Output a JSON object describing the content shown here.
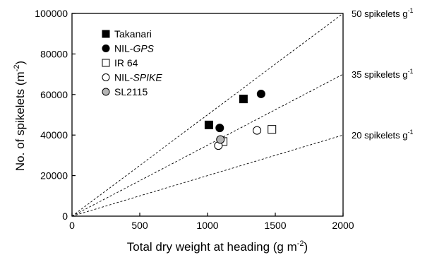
{
  "chart_data": {
    "type": "scatter",
    "title": "",
    "xlabel": "Total dry weight at heading (g m-2)",
    "ylabel": "No. of spikelets (m-2)",
    "xlim": [
      0,
      2000
    ],
    "ylim": [
      0,
      100000
    ],
    "xticks": [
      "0",
      "500",
      "1000",
      "1500",
      "2000"
    ],
    "yticks": [
      "0",
      "20000",
      "40000",
      "60000",
      "80000",
      "100000"
    ],
    "grid": false,
    "legend_position": "top-left",
    "series": [
      {
        "name": "Takanari",
        "marker": "filled-square",
        "points": [
          {
            "x": 1010,
            "y": 45000
          },
          {
            "x": 1265,
            "y": 57800
          }
        ]
      },
      {
        "name": "NIL-GPS",
        "marker": "filled-circle",
        "points": [
          {
            "x": 1090,
            "y": 43500
          },
          {
            "x": 1395,
            "y": 60300
          }
        ]
      },
      {
        "name": "IR 64",
        "marker": "open-square",
        "points": [
          {
            "x": 1115,
            "y": 36800
          },
          {
            "x": 1475,
            "y": 42800
          }
        ]
      },
      {
        "name": "NIL-SPIKE",
        "marker": "open-circle",
        "points": [
          {
            "x": 1080,
            "y": 34800
          },
          {
            "x": 1365,
            "y": 42300
          }
        ]
      },
      {
        "name": "SL2115",
        "marker": "gray-circle",
        "points": [
          {
            "x": 1095,
            "y": 37800
          }
        ]
      }
    ],
    "reference_lines": [
      {
        "label": "50 spikelets g",
        "sup": "-1",
        "slope": 50
      },
      {
        "label": "35 spikelets g",
        "sup": "-1",
        "slope": 35
      },
      {
        "label": "20 spikelets g",
        "sup": "-1",
        "slope": 20
      }
    ]
  }
}
